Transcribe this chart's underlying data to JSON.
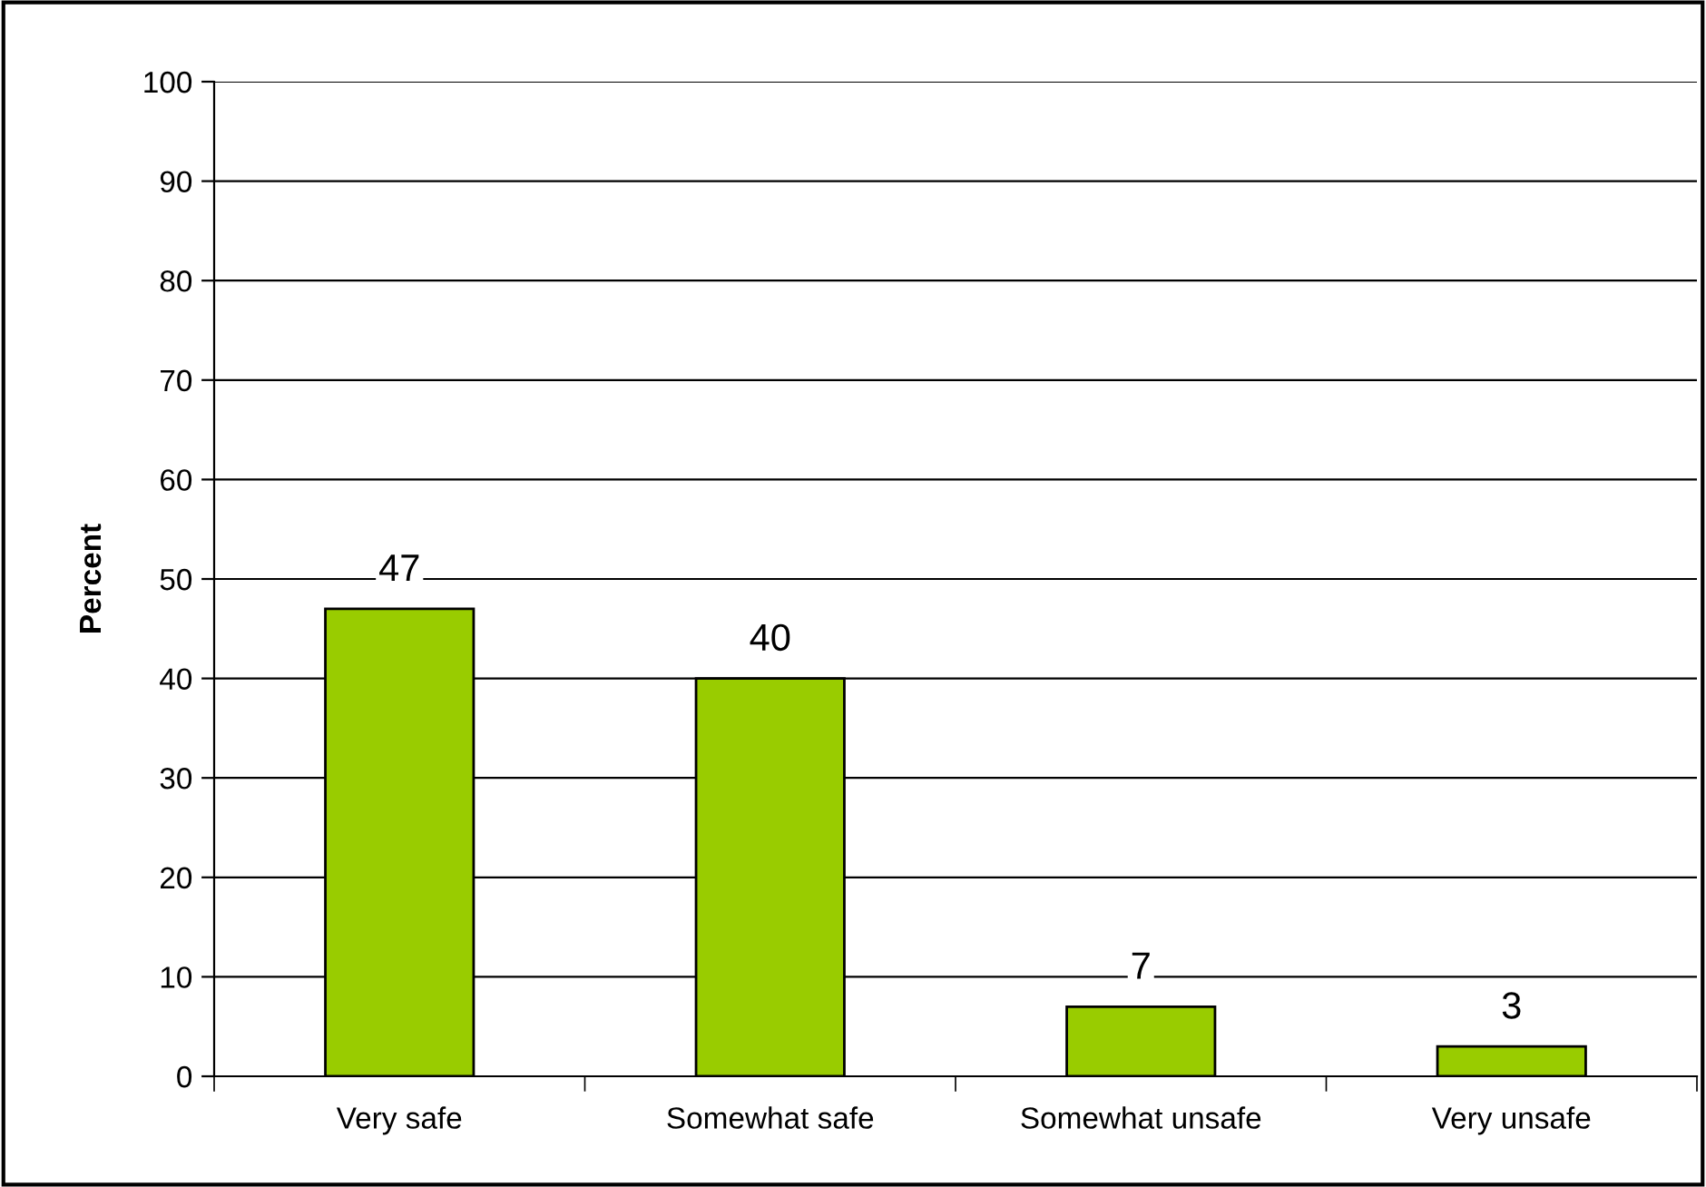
{
  "chart_data": {
    "type": "bar",
    "ylabel": "Percent",
    "categories": [
      "Very safe",
      "Somewhat safe",
      "Somewhat unsafe",
      "Very unsafe"
    ],
    "values": [
      47,
      40,
      7,
      3
    ],
    "color": "#99cc00",
    "ylim": [
      0,
      100
    ],
    "yticks": [
      0,
      10,
      20,
      30,
      40,
      50,
      60,
      70,
      80,
      90,
      100
    ],
    "grid": "y",
    "data_labels": true,
    "legend": false
  }
}
